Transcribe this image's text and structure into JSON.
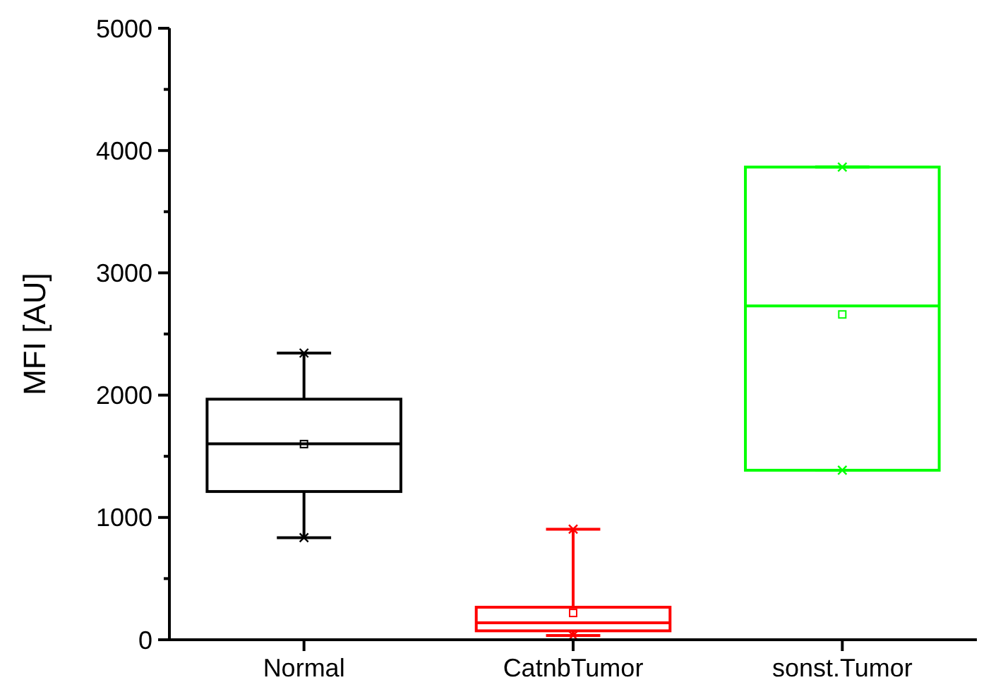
{
  "chart_data": {
    "type": "box",
    "ylabel": "MFI [AU]",
    "categories": [
      "Normal",
      "CatnbTumor",
      "sonst.Tumor"
    ],
    "colors": [
      "#000000",
      "#ff0000",
      "#00ff00"
    ],
    "boxes": [
      {
        "low": 835,
        "q1": 1212,
        "median": 1602,
        "q3": 1967,
        "high": 2344,
        "mean": 1600,
        "outliers": [
          835,
          2344
        ]
      },
      {
        "low": 35,
        "q1": 73,
        "median": 139,
        "q3": 266,
        "high": 904,
        "mean": 219,
        "outliers": [
          35,
          904
        ]
      },
      {
        "low": 1386,
        "q1": 1386,
        "median": 2729,
        "q3": 3865,
        "high": 3865,
        "mean": 2660,
        "outliers": [
          1386,
          3865
        ]
      }
    ],
    "ylim": [
      0,
      5000
    ],
    "yticks": [
      0,
      {
        "value": 500,
        "label": null
      },
      1000,
      {
        "value": 1500,
        "label": null
      },
      2000,
      {
        "value": 2500,
        "label": null
      },
      3000,
      {
        "value": 3500,
        "label": null
      },
      4000,
      {
        "value": 4500,
        "label": null
      },
      5000
    ],
    "grid": false,
    "marker": "cross"
  }
}
